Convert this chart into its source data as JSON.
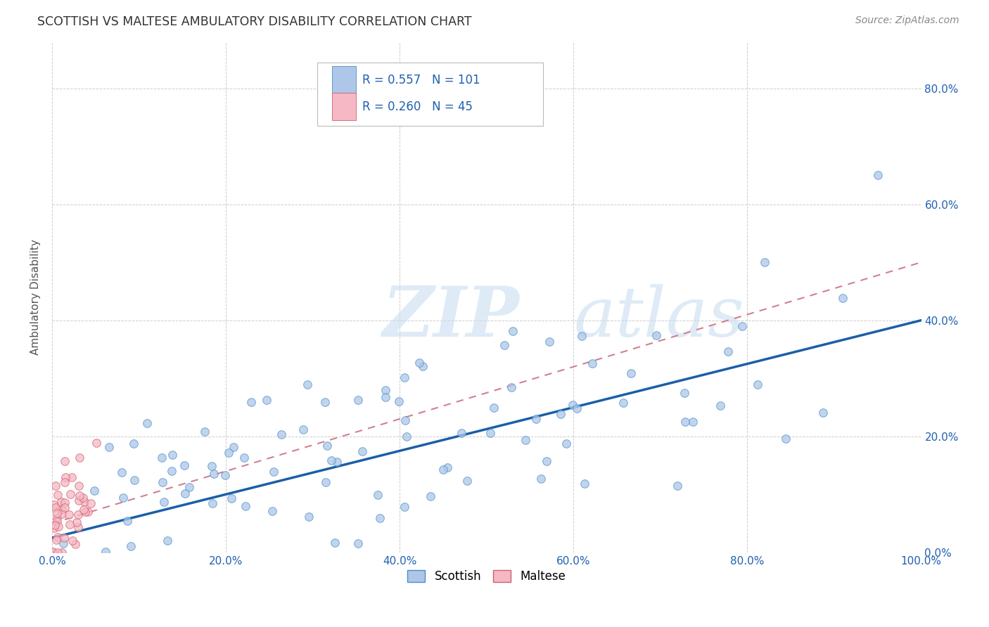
{
  "title": "SCOTTISH VS MALTESE AMBULATORY DISABILITY CORRELATION CHART",
  "source": "Source: ZipAtlas.com",
  "ylabel": "Ambulatory Disability",
  "xlim": [
    0.0,
    1.0
  ],
  "ylim": [
    0.0,
    0.88
  ],
  "xticks": [
    0.0,
    0.2,
    0.4,
    0.6,
    0.8,
    1.0
  ],
  "xticklabels": [
    "0.0%",
    "20.0%",
    "40.0%",
    "60.0%",
    "80.0%",
    "100.0%"
  ],
  "yticks": [
    0.0,
    0.2,
    0.4,
    0.6,
    0.8
  ],
  "yticklabels": [
    "0.0%",
    "20.0%",
    "40.0%",
    "60.0%",
    "80.0%"
  ],
  "scottish_R": 0.557,
  "scottish_N": 101,
  "maltese_R": 0.26,
  "maltese_N": 45,
  "scottish_face_color": "#aec6e8",
  "scottish_edge_color": "#4a90c8",
  "maltese_face_color": "#f5b8c4",
  "maltese_edge_color": "#d06070",
  "trend_scottish_color": "#1a5fa8",
  "trend_maltese_color": "#d08090",
  "legend_text_color": "#2060b0",
  "watermark": "ZIPatlas",
  "seed": 12345,
  "background_color": "#ffffff",
  "grid_color": "#cccccc",
  "tick_color": "#2060b0",
  "title_color": "#333333",
  "source_color": "#888888",
  "ylabel_color": "#555555"
}
